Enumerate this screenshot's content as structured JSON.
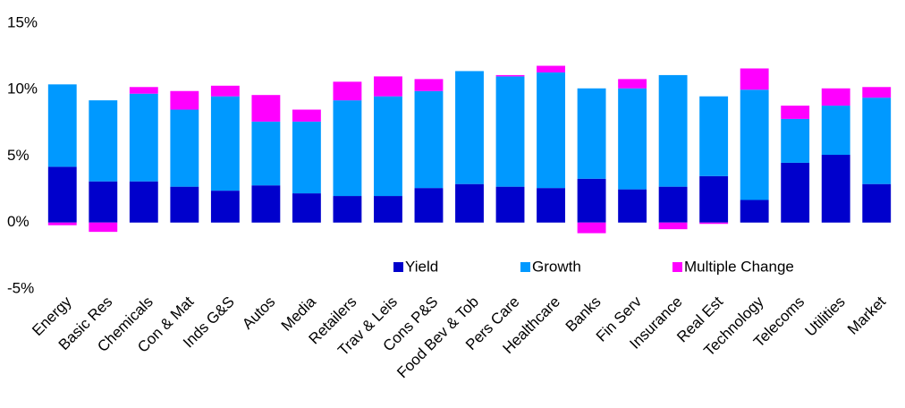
{
  "chart_data": {
    "type": "stacked_bar",
    "categories": [
      "Energy",
      "Basic Res",
      "Chemicals",
      "Con & Mat",
      "Inds G&S",
      "Autos",
      "Media",
      "Retailers",
      "Trav & Leis",
      "Cons P&S",
      "Food Bev & Tob",
      "Pers Care",
      "Healthcare",
      "Banks",
      "Fin Serv",
      "Insurance",
      "Real Est",
      "Technology",
      "Telecoms",
      "Utilities",
      "Market"
    ],
    "series": [
      {
        "name": "Yield",
        "color": "#0000cc",
        "values": [
          4.2,
          3.1,
          3.1,
          2.7,
          2.4,
          2.8,
          2.2,
          2.0,
          2.0,
          2.6,
          2.9,
          2.7,
          2.6,
          3.3,
          2.5,
          2.7,
          3.5,
          1.7,
          4.5,
          5.1,
          2.9
        ]
      },
      {
        "name": "Growth",
        "color": "#0099ff",
        "values": [
          6.2,
          6.1,
          6.6,
          5.8,
          7.1,
          4.8,
          5.4,
          7.2,
          7.5,
          7.3,
          8.5,
          8.3,
          8.7,
          6.8,
          7.6,
          8.4,
          6.0,
          8.3,
          3.3,
          3.7,
          6.5
        ]
      },
      {
        "name": "Multiple Change",
        "color": "#ff00ff",
        "values": [
          -0.2,
          -0.7,
          0.5,
          1.4,
          0.8,
          2.0,
          0.9,
          1.4,
          1.5,
          0.9,
          0,
          0.1,
          0.5,
          -0.8,
          0.7,
          -0.5,
          -0.1,
          1.6,
          1.0,
          1.3,
          0.8
        ]
      }
    ],
    "ylim": [
      -5,
      15
    ],
    "yticks": [
      {
        "value": -5,
        "label": "-5%"
      },
      {
        "value": 0,
        "label": "0%"
      },
      {
        "value": 5,
        "label": "5%"
      },
      {
        "value": 10,
        "label": "10%"
      },
      {
        "value": 15,
        "label": "15%"
      }
    ],
    "grid": false,
    "legend": "inside"
  }
}
